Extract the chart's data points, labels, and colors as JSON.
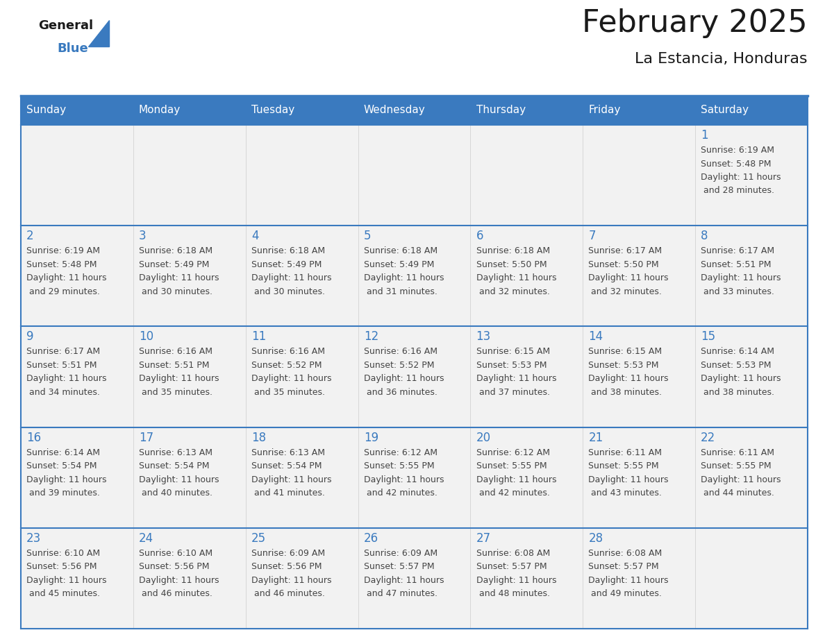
{
  "title": "February 2025",
  "subtitle": "La Estancia, Honduras",
  "header_bg": "#3a7abf",
  "header_text_color": "#ffffff",
  "cell_bg_light": "#f2f2f2",
  "cell_bg_white": "#ffffff",
  "day_number_color": "#3a7abf",
  "text_color": "#444444",
  "border_color": "#3a7abf",
  "days_of_week": [
    "Sunday",
    "Monday",
    "Tuesday",
    "Wednesday",
    "Thursday",
    "Friday",
    "Saturday"
  ],
  "calendar": [
    [
      null,
      null,
      null,
      null,
      null,
      null,
      {
        "day": 1,
        "sunrise": "6:19 AM",
        "sunset": "5:48 PM",
        "daylight": "11 hours and 28 minutes."
      }
    ],
    [
      {
        "day": 2,
        "sunrise": "6:19 AM",
        "sunset": "5:48 PM",
        "daylight": "11 hours and 29 minutes."
      },
      {
        "day": 3,
        "sunrise": "6:18 AM",
        "sunset": "5:49 PM",
        "daylight": "11 hours and 30 minutes."
      },
      {
        "day": 4,
        "sunrise": "6:18 AM",
        "sunset": "5:49 PM",
        "daylight": "11 hours and 30 minutes."
      },
      {
        "day": 5,
        "sunrise": "6:18 AM",
        "sunset": "5:49 PM",
        "daylight": "11 hours and 31 minutes."
      },
      {
        "day": 6,
        "sunrise": "6:18 AM",
        "sunset": "5:50 PM",
        "daylight": "11 hours and 32 minutes."
      },
      {
        "day": 7,
        "sunrise": "6:17 AM",
        "sunset": "5:50 PM",
        "daylight": "11 hours and 32 minutes."
      },
      {
        "day": 8,
        "sunrise": "6:17 AM",
        "sunset": "5:51 PM",
        "daylight": "11 hours and 33 minutes."
      }
    ],
    [
      {
        "day": 9,
        "sunrise": "6:17 AM",
        "sunset": "5:51 PM",
        "daylight": "11 hours and 34 minutes."
      },
      {
        "day": 10,
        "sunrise": "6:16 AM",
        "sunset": "5:51 PM",
        "daylight": "11 hours and 35 minutes."
      },
      {
        "day": 11,
        "sunrise": "6:16 AM",
        "sunset": "5:52 PM",
        "daylight": "11 hours and 35 minutes."
      },
      {
        "day": 12,
        "sunrise": "6:16 AM",
        "sunset": "5:52 PM",
        "daylight": "11 hours and 36 minutes."
      },
      {
        "day": 13,
        "sunrise": "6:15 AM",
        "sunset": "5:53 PM",
        "daylight": "11 hours and 37 minutes."
      },
      {
        "day": 14,
        "sunrise": "6:15 AM",
        "sunset": "5:53 PM",
        "daylight": "11 hours and 38 minutes."
      },
      {
        "day": 15,
        "sunrise": "6:14 AM",
        "sunset": "5:53 PM",
        "daylight": "11 hours and 38 minutes."
      }
    ],
    [
      {
        "day": 16,
        "sunrise": "6:14 AM",
        "sunset": "5:54 PM",
        "daylight": "11 hours and 39 minutes."
      },
      {
        "day": 17,
        "sunrise": "6:13 AM",
        "sunset": "5:54 PM",
        "daylight": "11 hours and 40 minutes."
      },
      {
        "day": 18,
        "sunrise": "6:13 AM",
        "sunset": "5:54 PM",
        "daylight": "11 hours and 41 minutes."
      },
      {
        "day": 19,
        "sunrise": "6:12 AM",
        "sunset": "5:55 PM",
        "daylight": "11 hours and 42 minutes."
      },
      {
        "day": 20,
        "sunrise": "6:12 AM",
        "sunset": "5:55 PM",
        "daylight": "11 hours and 42 minutes."
      },
      {
        "day": 21,
        "sunrise": "6:11 AM",
        "sunset": "5:55 PM",
        "daylight": "11 hours and 43 minutes."
      },
      {
        "day": 22,
        "sunrise": "6:11 AM",
        "sunset": "5:55 PM",
        "daylight": "11 hours and 44 minutes."
      }
    ],
    [
      {
        "day": 23,
        "sunrise": "6:10 AM",
        "sunset": "5:56 PM",
        "daylight": "11 hours and 45 minutes."
      },
      {
        "day": 24,
        "sunrise": "6:10 AM",
        "sunset": "5:56 PM",
        "daylight": "11 hours and 46 minutes."
      },
      {
        "day": 25,
        "sunrise": "6:09 AM",
        "sunset": "5:56 PM",
        "daylight": "11 hours and 46 minutes."
      },
      {
        "day": 26,
        "sunrise": "6:09 AM",
        "sunset": "5:57 PM",
        "daylight": "11 hours and 47 minutes."
      },
      {
        "day": 27,
        "sunrise": "6:08 AM",
        "sunset": "5:57 PM",
        "daylight": "11 hours and 48 minutes."
      },
      {
        "day": 28,
        "sunrise": "6:08 AM",
        "sunset": "5:57 PM",
        "daylight": "11 hours and 49 minutes."
      },
      null
    ]
  ]
}
